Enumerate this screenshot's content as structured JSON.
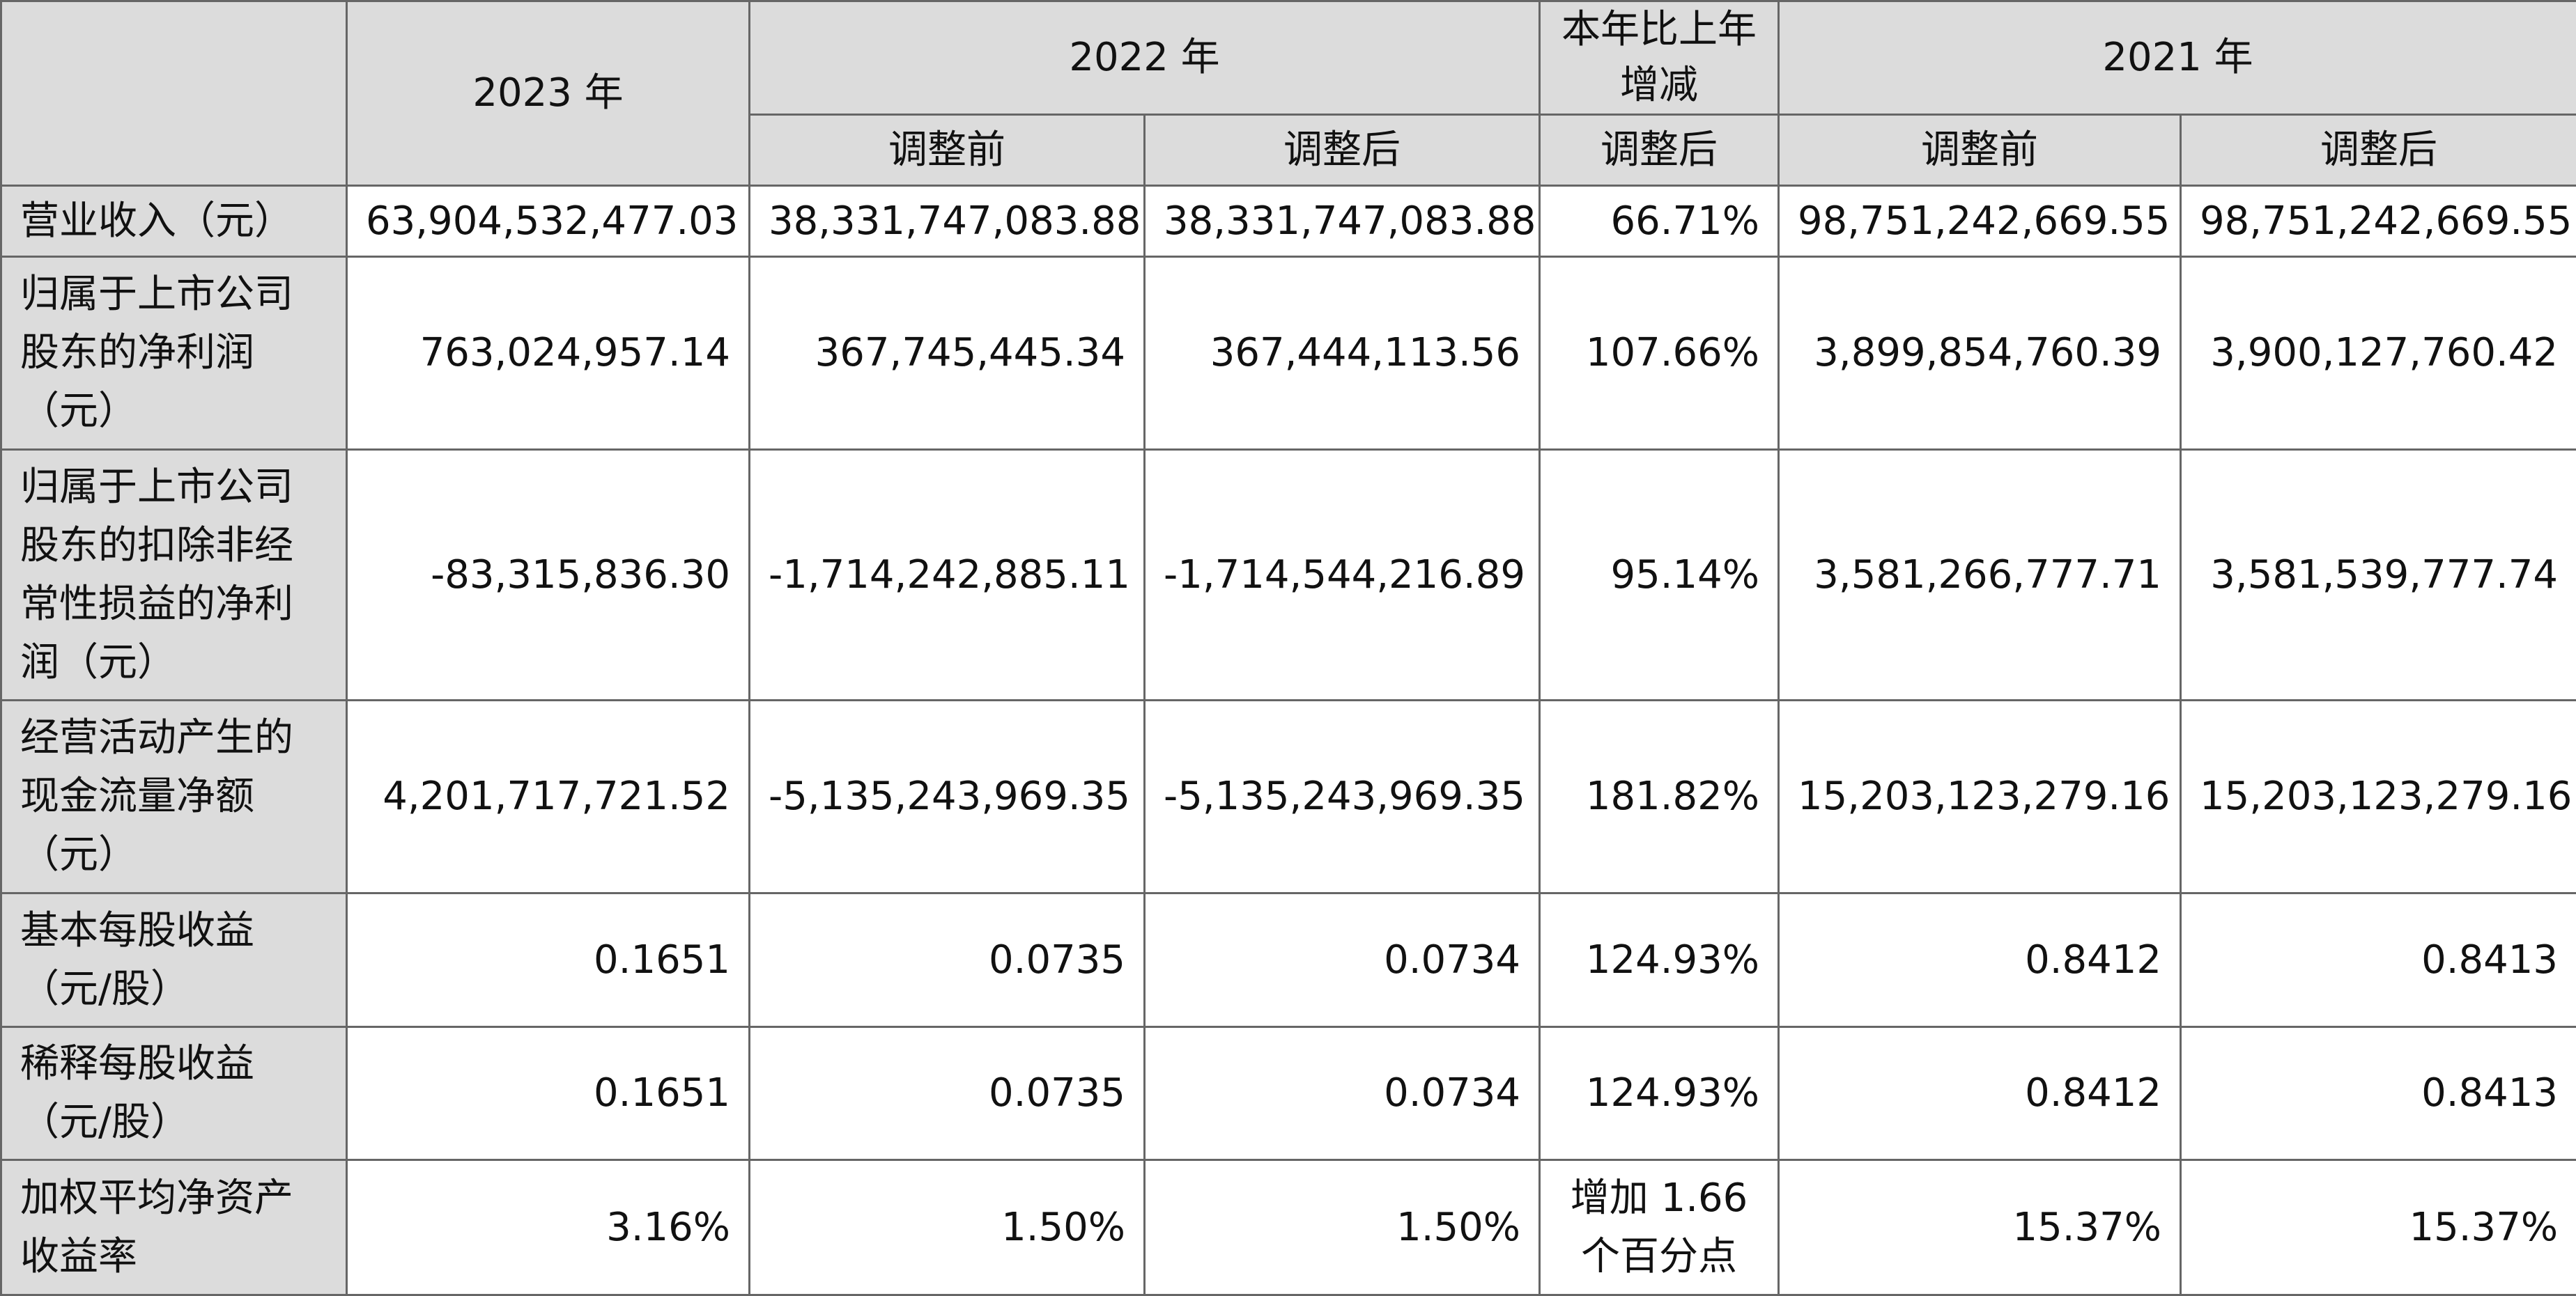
{
  "header": {
    "year_2023": "2023 年",
    "year_2022": "2022 年",
    "yoy_change": "本年比上年增减",
    "year_2021": "2021 年",
    "before_adjustment": "调整前",
    "after_adjustment": "调整后"
  },
  "rows": [
    {
      "label": "营业收入（元）",
      "values": [
        "63,904,532,477.03",
        "38,331,747,083.88",
        "38,331,747,083.88",
        "66.71%",
        "98,751,242,669.55",
        "98,751,242,669.55"
      ]
    },
    {
      "label": "归属于上市公司股东的净利润（元）",
      "values": [
        "763,024,957.14",
        "367,745,445.34",
        "367,444,113.56",
        "107.66%",
        "3,899,854,760.39",
        "3,900,127,760.42"
      ]
    },
    {
      "label": "归属于上市公司股东的扣除非经常性损益的净利润（元）",
      "values": [
        "-83,315,836.30",
        "-1,714,242,885.11",
        "-1,714,544,216.89",
        "95.14%",
        "3,581,266,777.71",
        "3,581,539,777.74"
      ]
    },
    {
      "label": "经营活动产生的现金流量净额（元）",
      "values": [
        "4,201,717,721.52",
        "-5,135,243,969.35",
        "-5,135,243,969.35",
        "181.82%",
        "15,203,123,279.16",
        "15,203,123,279.16"
      ]
    },
    {
      "label": "基本每股收益（元/股）",
      "values": [
        "0.1651",
        "0.0735",
        "0.0734",
        "124.93%",
        "0.8412",
        "0.8413"
      ]
    },
    {
      "label": "稀释每股收益（元/股）",
      "values": [
        "0.1651",
        "0.0735",
        "0.0734",
        "124.93%",
        "0.8412",
        "0.8413"
      ]
    },
    {
      "label": "加权平均净资产收益率",
      "values": [
        "3.16%",
        "1.50%",
        "1.50%",
        "增加 1.66 个百分点",
        "15.37%",
        "15.37%"
      ]
    }
  ]
}
